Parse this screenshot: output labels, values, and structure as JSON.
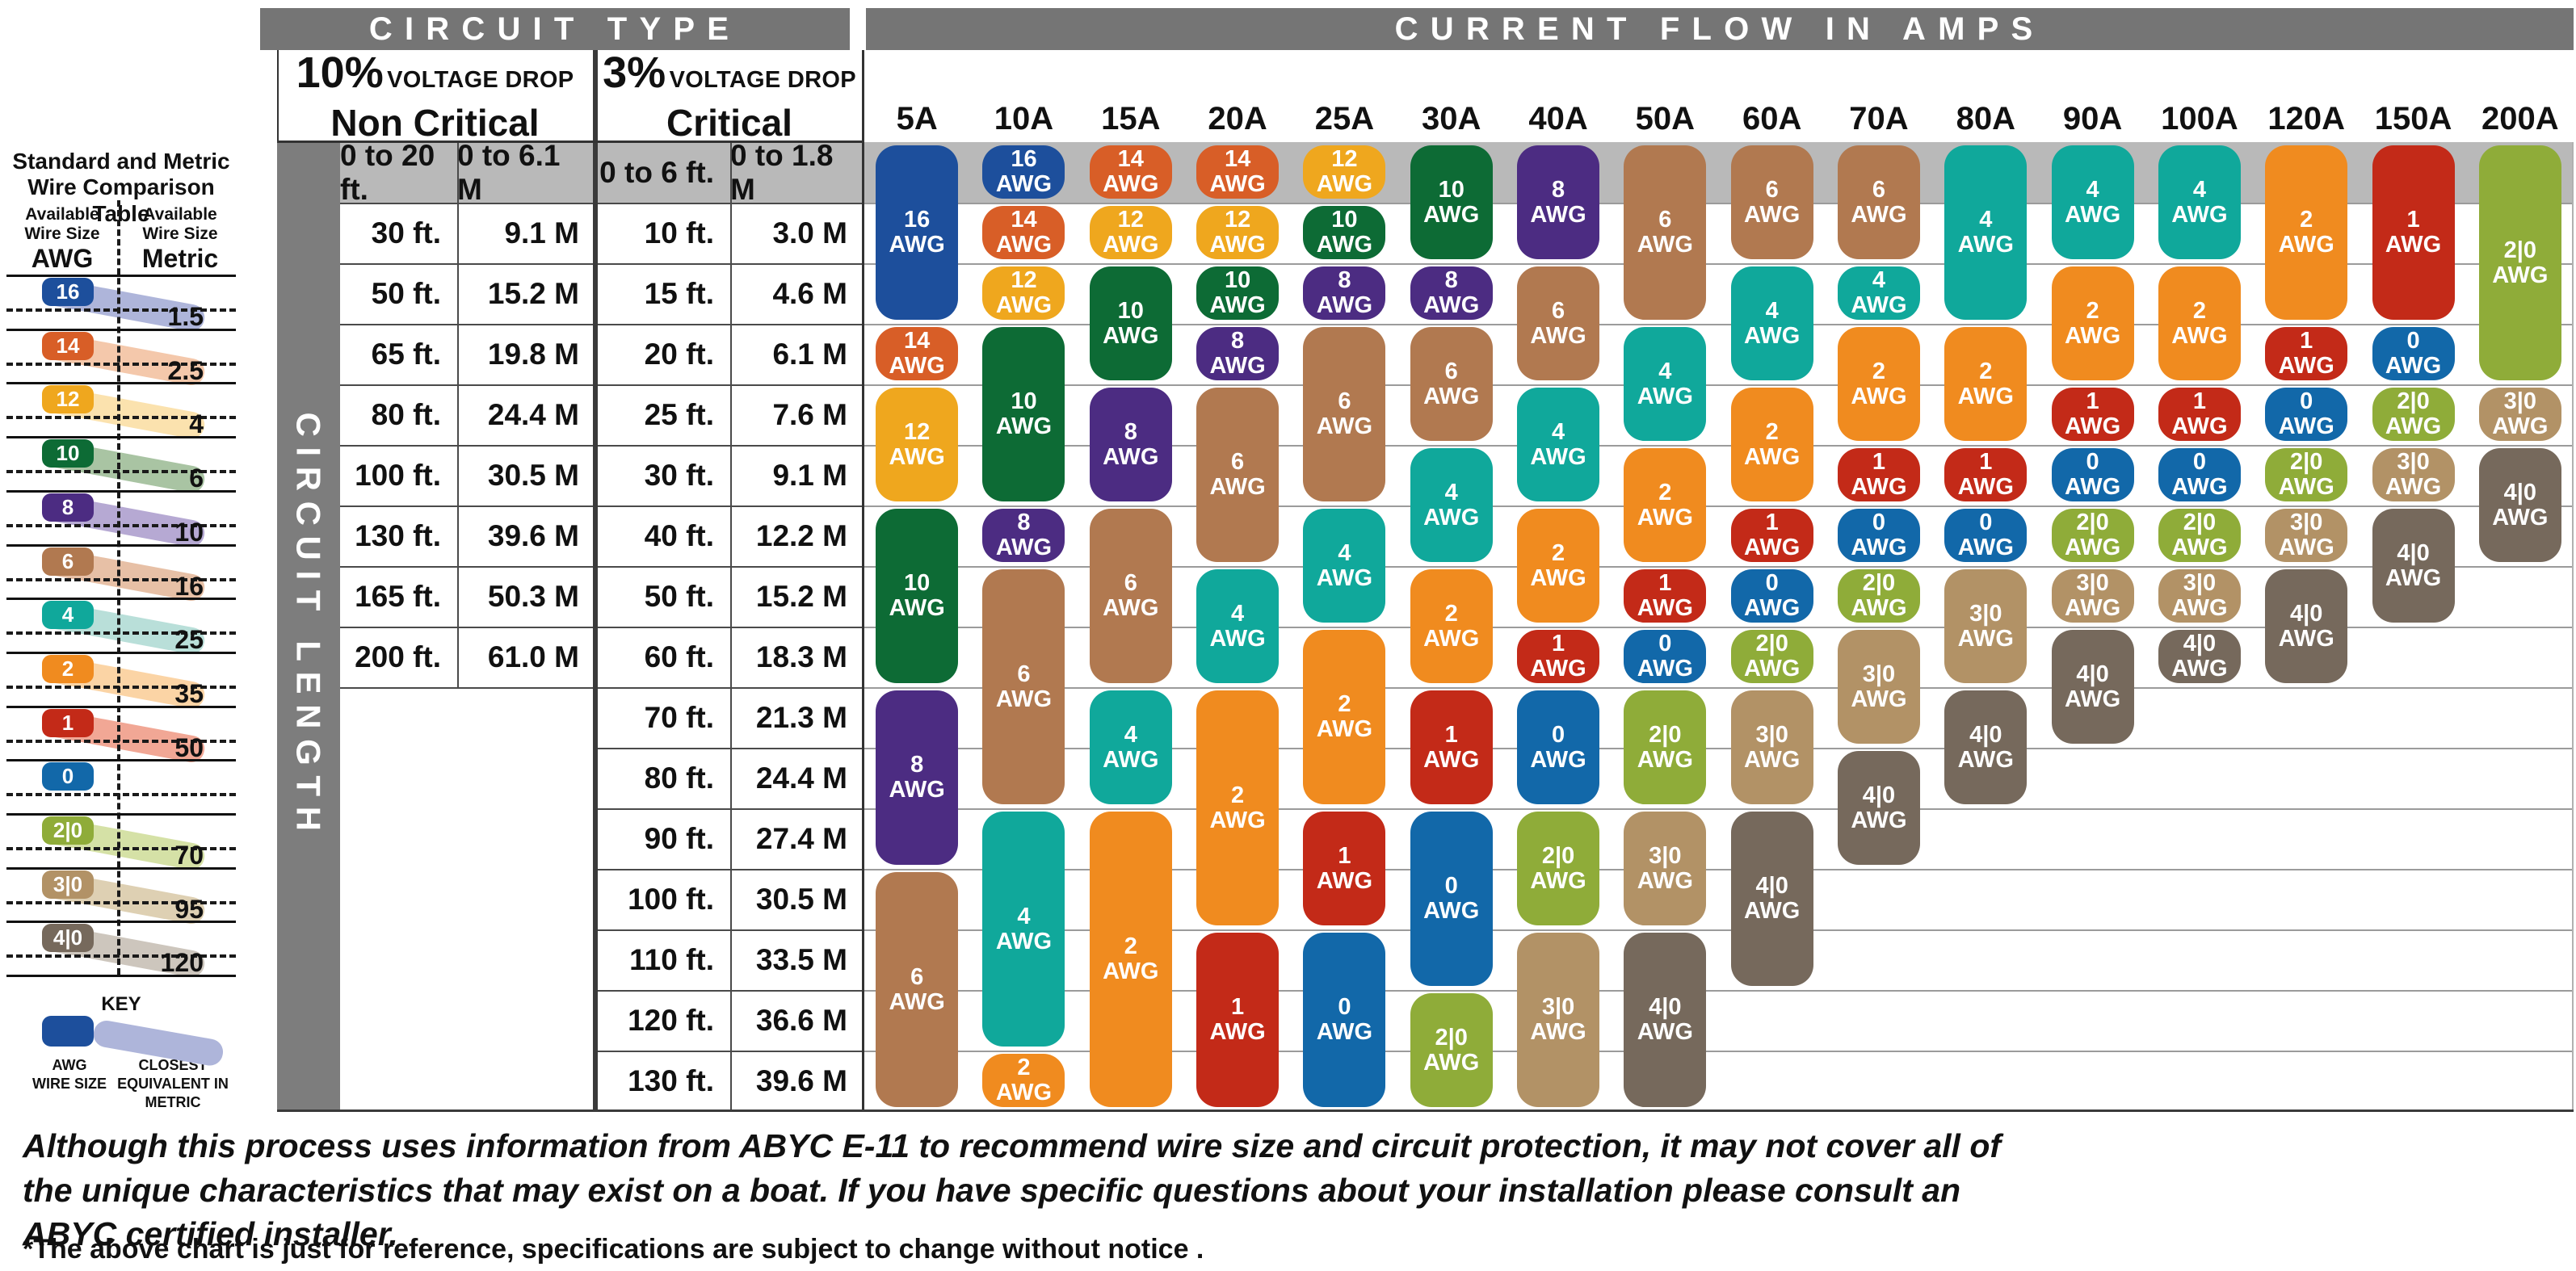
{
  "header": {
    "circuit_type": "CIRCUIT TYPE",
    "current_flow": "CURRENT FLOW IN AMPS",
    "non_critical": {
      "pct": "10%",
      "drop": "VOLTAGE DROP",
      "label": "Non Critical"
    },
    "critical": {
      "pct": "3%",
      "drop": "VOLTAGE DROP",
      "label": "Critical"
    }
  },
  "circuit_length_label": "CIRCUIT LENGTH",
  "awg_suffix": "AWG",
  "chart_data": {
    "type": "table",
    "title": "CURRENT FLOW IN AMPS",
    "amps": [
      "5A",
      "10A",
      "15A",
      "20A",
      "25A",
      "30A",
      "40A",
      "50A",
      "60A",
      "70A",
      "80A",
      "90A",
      "100A",
      "120A",
      "150A",
      "200A"
    ],
    "rows": [
      [
        "0 to 20 ft.",
        "0 to 6.1 M",
        "0 to 6 ft.",
        "0 to 1.8 M"
      ],
      [
        "30 ft.",
        "9.1 M",
        "10 ft.",
        "3.0 M"
      ],
      [
        "50 ft.",
        "15.2 M",
        "15 ft.",
        "4.6 M"
      ],
      [
        "65 ft.",
        "19.8 M",
        "20 ft.",
        "6.1 M"
      ],
      [
        "80 ft.",
        "24.4 M",
        "25 ft.",
        "7.6 M"
      ],
      [
        "100 ft.",
        "30.5 M",
        "30 ft.",
        "9.1 M"
      ],
      [
        "130 ft.",
        "39.6 M",
        "40 ft.",
        "12.2 M"
      ],
      [
        "165 ft.",
        "50.3 M",
        "50 ft.",
        "15.2 M"
      ],
      [
        "200 ft.",
        "61.0 M",
        "60 ft.",
        "18.3 M"
      ],
      [
        "",
        "",
        "70 ft.",
        "21.3 M"
      ],
      [
        "",
        "",
        "80 ft.",
        "24.4 M"
      ],
      [
        "",
        "",
        "90 ft.",
        "27.4 M"
      ],
      [
        "",
        "",
        "100 ft.",
        "30.5 M"
      ],
      [
        "",
        "",
        "110 ft.",
        "33.5 M"
      ],
      [
        "",
        "",
        "120 ft.",
        "36.6 M"
      ],
      [
        "",
        "",
        "130 ft.",
        "39.6 M"
      ]
    ],
    "columns": [
      {
        "amp": "5A",
        "segments": [
          [
            "16",
            1,
            3
          ],
          [
            "14",
            4,
            4
          ],
          [
            "12",
            5,
            6
          ],
          [
            "10",
            7,
            9
          ],
          [
            "8",
            10,
            12
          ],
          [
            "6",
            13,
            16
          ]
        ]
      },
      {
        "amp": "10A",
        "segments": [
          [
            "16",
            1,
            1
          ],
          [
            "14",
            2,
            2
          ],
          [
            "12",
            3,
            3
          ],
          [
            "10",
            4,
            6
          ],
          [
            "8",
            7,
            7
          ],
          [
            "6",
            8,
            11
          ],
          [
            "4",
            12,
            15
          ],
          [
            "2",
            16,
            16
          ]
        ]
      },
      {
        "amp": "15A",
        "segments": [
          [
            "14",
            1,
            1
          ],
          [
            "12",
            2,
            2
          ],
          [
            "10",
            3,
            4
          ],
          [
            "8",
            5,
            6
          ],
          [
            "6",
            7,
            9
          ],
          [
            "4",
            10,
            11
          ],
          [
            "2",
            12,
            16
          ]
        ]
      },
      {
        "amp": "20A",
        "segments": [
          [
            "14",
            1,
            1
          ],
          [
            "12",
            2,
            2
          ],
          [
            "10",
            3,
            3
          ],
          [
            "8",
            4,
            4
          ],
          [
            "6",
            5,
            7
          ],
          [
            "4",
            8,
            9
          ],
          [
            "2",
            10,
            13
          ],
          [
            "1",
            14,
            16
          ]
        ]
      },
      {
        "amp": "25A",
        "segments": [
          [
            "12",
            1,
            1
          ],
          [
            "10",
            2,
            2
          ],
          [
            "8",
            3,
            3
          ],
          [
            "6",
            4,
            6
          ],
          [
            "4",
            7,
            8
          ],
          [
            "2",
            9,
            11
          ],
          [
            "1",
            12,
            13
          ],
          [
            "0",
            14,
            16
          ]
        ]
      },
      {
        "amp": "30A",
        "segments": [
          [
            "10",
            1,
            2
          ],
          [
            "8",
            3,
            3
          ],
          [
            "6",
            4,
            5
          ],
          [
            "4",
            6,
            7
          ],
          [
            "2",
            8,
            9
          ],
          [
            "1",
            10,
            11
          ],
          [
            "0",
            12,
            14
          ],
          [
            "2|0",
            15,
            16
          ]
        ]
      },
      {
        "amp": "40A",
        "segments": [
          [
            "8",
            1,
            2
          ],
          [
            "6",
            3,
            4
          ],
          [
            "4",
            5,
            6
          ],
          [
            "2",
            7,
            8
          ],
          [
            "1",
            9,
            9
          ],
          [
            "0",
            10,
            11
          ],
          [
            "2|0",
            12,
            13
          ],
          [
            "3|0",
            14,
            16
          ]
        ]
      },
      {
        "amp": "50A",
        "segments": [
          [
            "6",
            1,
            3
          ],
          [
            "4",
            4,
            5
          ],
          [
            "2",
            6,
            7
          ],
          [
            "1",
            8,
            8
          ],
          [
            "0",
            9,
            9
          ],
          [
            "2|0",
            10,
            11
          ],
          [
            "3|0",
            12,
            13
          ],
          [
            "4|0",
            14,
            16
          ]
        ]
      },
      {
        "amp": "60A",
        "segments": [
          [
            "6",
            1,
            2
          ],
          [
            "4",
            3,
            4
          ],
          [
            "2",
            5,
            6
          ],
          [
            "1",
            7,
            7
          ],
          [
            "0",
            8,
            8
          ],
          [
            "2|0",
            9,
            9
          ],
          [
            "3|0",
            10,
            11
          ],
          [
            "4|0",
            12,
            14
          ]
        ]
      },
      {
        "amp": "70A",
        "segments": [
          [
            "6",
            1,
            2
          ],
          [
            "4",
            3,
            3
          ],
          [
            "2",
            4,
            5
          ],
          [
            "1",
            6,
            6
          ],
          [
            "0",
            7,
            7
          ],
          [
            "2|0",
            8,
            8
          ],
          [
            "3|0",
            9,
            10
          ],
          [
            "4|0",
            11,
            12
          ]
        ]
      },
      {
        "amp": "80A",
        "segments": [
          [
            "4",
            1,
            3
          ],
          [
            "2",
            4,
            5
          ],
          [
            "1",
            6,
            6
          ],
          [
            "0",
            7,
            7
          ],
          [
            "3|0",
            8,
            9
          ],
          [
            "4|0",
            10,
            11
          ]
        ]
      },
      {
        "amp": "90A",
        "segments": [
          [
            "4",
            1,
            2
          ],
          [
            "2",
            3,
            4
          ],
          [
            "1",
            5,
            5
          ],
          [
            "0",
            6,
            6
          ],
          [
            "2|0",
            7,
            7
          ],
          [
            "3|0",
            8,
            8
          ],
          [
            "4|0",
            9,
            10
          ]
        ]
      },
      {
        "amp": "100A",
        "segments": [
          [
            "4",
            1,
            2
          ],
          [
            "2",
            3,
            4
          ],
          [
            "1",
            5,
            5
          ],
          [
            "0",
            6,
            6
          ],
          [
            "2|0",
            7,
            7
          ],
          [
            "3|0",
            8,
            8
          ],
          [
            "4|0",
            9,
            9
          ]
        ]
      },
      {
        "amp": "120A",
        "segments": [
          [
            "2",
            1,
            3
          ],
          [
            "1",
            4,
            4
          ],
          [
            "0",
            5,
            5
          ],
          [
            "2|0",
            6,
            6
          ],
          [
            "3|0",
            7,
            7
          ],
          [
            "4|0",
            8,
            9
          ]
        ]
      },
      {
        "amp": "150A",
        "segments": [
          [
            "1",
            1,
            3
          ],
          [
            "0",
            4,
            4
          ],
          [
            "2|0",
            5,
            5
          ],
          [
            "3|0",
            6,
            6
          ],
          [
            "4|0",
            7,
            8
          ]
        ]
      },
      {
        "amp": "200A",
        "segments": [
          [
            "2|0",
            1,
            4
          ],
          [
            "3|0",
            5,
            5
          ],
          [
            "4|0",
            6,
            7
          ]
        ]
      }
    ]
  },
  "awg_colors": {
    "16": {
      "main": "#1d4f9c",
      "light": "#aeb5da"
    },
    "14": {
      "main": "#d85e27",
      "light": "#f4c8ab"
    },
    "12": {
      "main": "#efa71e",
      "light": "#fbe2ae"
    },
    "10": {
      "main": "#0d6b35",
      "light": "#a9c4a3"
    },
    "8": {
      "main": "#4c2c82",
      "light": "#b6a9d3"
    },
    "6": {
      "main": "#b17950",
      "light": "#e7c0a6"
    },
    "4": {
      "main": "#10a89b",
      "light": "#b9dfd9"
    },
    "2": {
      "main": "#f08b1f",
      "light": "#fbd4a5"
    },
    "1": {
      "main": "#c32a18",
      "light": "#f1a795"
    },
    "0": {
      "main": "#1268a9",
      "light": ""
    },
    "2|0": {
      "main": "#8fac39",
      "light": "#d5e1a6"
    },
    "3|0": {
      "main": "#b29266",
      "light": "#ded0b3"
    },
    "4|0": {
      "main": "#76695c",
      "light": "#cdc6bd"
    }
  },
  "sidebar": {
    "title": "Standard and Metric Wire Comparison Table",
    "col_awg_sub": "Available Wire Size",
    "col_awg_name": "AWG",
    "col_metric_sub": "Available Wire Size",
    "col_metric_name": "Metric",
    "pairs": [
      {
        "awg": "16",
        "metric": "1.5"
      },
      {
        "awg": "14",
        "metric": "2.5"
      },
      {
        "awg": "12",
        "metric": "4"
      },
      {
        "awg": "10",
        "metric": "6"
      },
      {
        "awg": "8",
        "metric": "10"
      },
      {
        "awg": "6",
        "metric": "16"
      },
      {
        "awg": "4",
        "metric": "25"
      },
      {
        "awg": "2",
        "metric": "35"
      },
      {
        "awg": "1",
        "metric": "50"
      },
      {
        "awg": "0",
        "metric": ""
      },
      {
        "awg": "2|0",
        "metric": "70"
      },
      {
        "awg": "3|0",
        "metric": "95"
      },
      {
        "awg": "4|0",
        "metric": "120"
      }
    ],
    "key": {
      "title": "KEY",
      "awg_label": "AWG WIRE SIZE",
      "metric_label": "CLOSEST EQUIVALENT IN METRIC"
    }
  },
  "footer": {
    "disclaimer": "Although this process uses information from ABYC E-11 to recommend wire size and circuit protection, it may not cover all of the unique characteristics that may exist on a boat. If you have specific questions about your installation please consult an ABYC certified installer.",
    "note": "*The above chart is just for reference, specifications are subject to change without notice ."
  }
}
